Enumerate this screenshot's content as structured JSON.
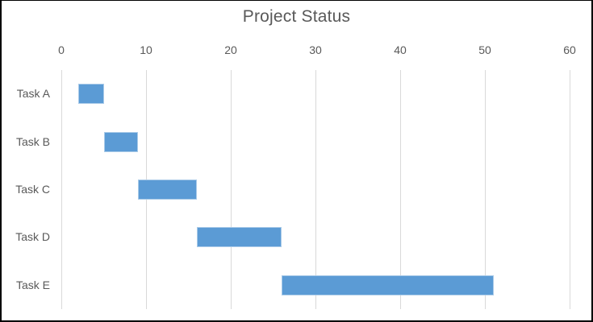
{
  "window": {
    "background": "#ffffff",
    "frame_border_color": "#000000"
  },
  "chart_data": {
    "type": "bar",
    "orientation": "horizontal",
    "subtype": "gantt",
    "title": "Project Status",
    "categories": [
      "Task A",
      "Task B",
      "Task C",
      "Task D",
      "Task E"
    ],
    "bars": [
      {
        "label": "Task A",
        "start": 2,
        "end": 5,
        "duration": 3
      },
      {
        "label": "Task B",
        "start": 5,
        "end": 9,
        "duration": 4
      },
      {
        "label": "Task C",
        "start": 9,
        "end": 16,
        "duration": 7
      },
      {
        "label": "Task D",
        "start": 16,
        "end": 26,
        "duration": 10
      },
      {
        "label": "Task E",
        "start": 26,
        "end": 51,
        "duration": 25
      }
    ],
    "xlim": [
      0,
      60
    ],
    "x_ticks": [
      "0",
      "10",
      "20",
      "30",
      "40",
      "50",
      "60"
    ],
    "x_axis_position": "top",
    "grid": true,
    "legend": "none",
    "colors": {
      "bar_fill": "#5b9bd5",
      "bar_edge": "#a9cae8",
      "gridline": "#d9d9d9",
      "text": "#595959"
    }
  }
}
